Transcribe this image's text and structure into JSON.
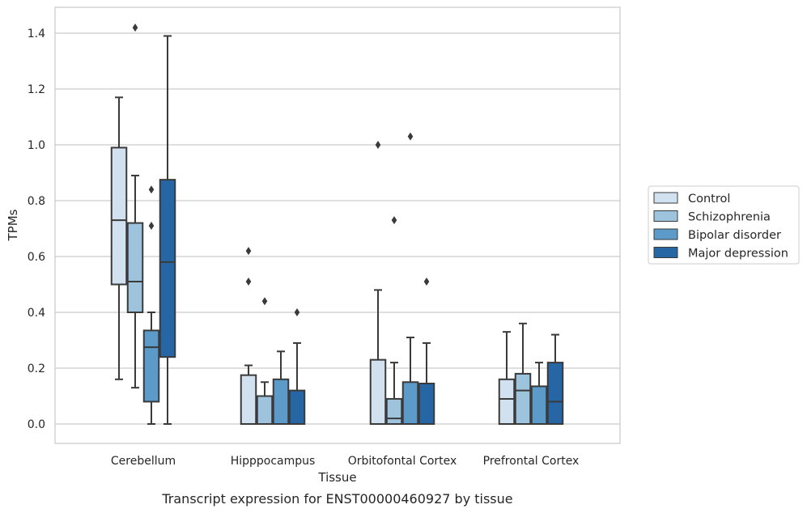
{
  "caption": "Transcript expression for ENST00000460927 by tissue",
  "chart_data": {
    "type": "box",
    "xlabel": "Tissue",
    "ylabel": "TPMs",
    "ylim": [
      -0.07,
      1.49
    ],
    "yticks": [
      "0.0",
      "0.2",
      "0.4",
      "0.6",
      "0.8",
      "1.0",
      "1.2",
      "1.4"
    ],
    "ytick_values": [
      0.0,
      0.2,
      0.4,
      0.6,
      0.8,
      1.0,
      1.2,
      1.4
    ],
    "grid": "horizontal",
    "legend_position": "right",
    "categories": [
      "Cerebellum",
      "Hipppocampus",
      "Orbitofontal Cortex",
      "Prefrontal Cortex"
    ],
    "series": [
      {
        "name": "Control",
        "color": "#d1e1f0",
        "boxes": [
          {
            "whislo": 0.16,
            "q1": 0.5,
            "med": 0.73,
            "q3": 0.99,
            "whishi": 1.17,
            "fliers": []
          },
          {
            "whislo": 0.0,
            "q1": 0.0,
            "med": 0.0,
            "q3": 0.175,
            "whishi": 0.21,
            "fliers": [
              0.51,
              0.62
            ]
          },
          {
            "whislo": 0.0,
            "q1": 0.0,
            "med": 0.0,
            "q3": 0.23,
            "whishi": 0.48,
            "fliers": [
              1.0
            ]
          },
          {
            "whislo": 0.0,
            "q1": 0.0,
            "med": 0.09,
            "q3": 0.16,
            "whishi": 0.33,
            "fliers": []
          }
        ]
      },
      {
        "name": "Schizophrenia",
        "color": "#9dc4dc",
        "boxes": [
          {
            "whislo": 0.13,
            "q1": 0.4,
            "med": 0.51,
            "q3": 0.72,
            "whishi": 0.89,
            "fliers": [
              1.42
            ]
          },
          {
            "whislo": 0.0,
            "q1": 0.0,
            "med": 0.0,
            "q3": 0.1,
            "whishi": 0.15,
            "fliers": [
              0.44
            ]
          },
          {
            "whislo": 0.0,
            "q1": 0.0,
            "med": 0.02,
            "q3": 0.09,
            "whishi": 0.22,
            "fliers": [
              0.73
            ]
          },
          {
            "whislo": 0.0,
            "q1": 0.0,
            "med": 0.12,
            "q3": 0.18,
            "whishi": 0.36,
            "fliers": []
          }
        ]
      },
      {
        "name": "Bipolar disorder",
        "color": "#5b9ac9",
        "boxes": [
          {
            "whislo": 0.0,
            "q1": 0.08,
            "med": 0.275,
            "q3": 0.335,
            "whishi": 0.4,
            "fliers": [
              0.71,
              0.84
            ]
          },
          {
            "whislo": 0.0,
            "q1": 0.0,
            "med": 0.0,
            "q3": 0.16,
            "whishi": 0.26,
            "fliers": []
          },
          {
            "whislo": 0.0,
            "q1": 0.0,
            "med": 0.0,
            "q3": 0.15,
            "whishi": 0.31,
            "fliers": [
              1.03
            ]
          },
          {
            "whislo": 0.0,
            "q1": 0.0,
            "med": 0.0,
            "q3": 0.135,
            "whishi": 0.22,
            "fliers": []
          }
        ]
      },
      {
        "name": "Major depression",
        "color": "#2666a5",
        "boxes": [
          {
            "whislo": 0.0,
            "q1": 0.24,
            "med": 0.58,
            "q3": 0.875,
            "whishi": 1.39,
            "fliers": []
          },
          {
            "whislo": 0.0,
            "q1": 0.0,
            "med": 0.0,
            "q3": 0.12,
            "whishi": 0.29,
            "fliers": [
              0.4
            ]
          },
          {
            "whislo": 0.0,
            "q1": 0.0,
            "med": 0.0,
            "q3": 0.145,
            "whishi": 0.29,
            "fliers": [
              0.51
            ]
          },
          {
            "whislo": 0.0,
            "q1": 0.0,
            "med": 0.08,
            "q3": 0.22,
            "whishi": 0.32,
            "fliers": []
          }
        ]
      }
    ]
  }
}
